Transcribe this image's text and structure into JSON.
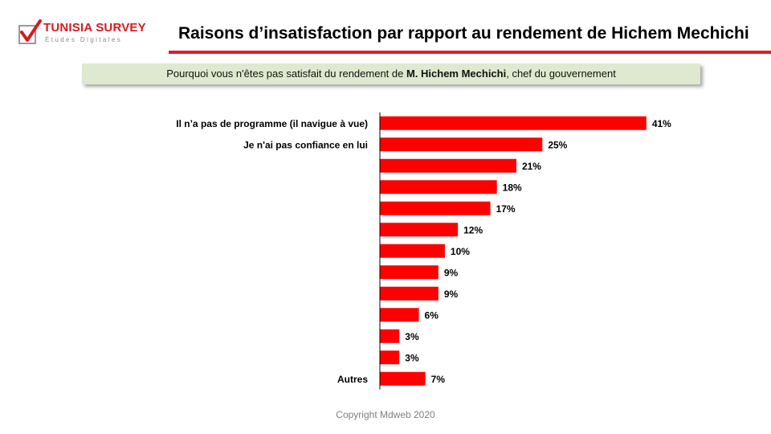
{
  "brand": {
    "name": "TUNISIA SURVEY",
    "tagline": "Études Digitales",
    "color": "#d71920"
  },
  "header": {
    "title": "Raisons d’insatisfaction par rapport au rendement de Hichem Mechichi"
  },
  "question": {
    "prefix": "Pourquoi  vous n'êtes pas satisfait du rendement  de ",
    "name": "M. Hichem Mechichi",
    "suffix": ", chef du gouvernement"
  },
  "footer": {
    "copyright": "Copyright Mdweb 2020"
  },
  "colors": {
    "bar": "#ff0000",
    "accent": "#e31b23",
    "subtitle_bg": "#dfe9cf"
  },
  "chart_data": {
    "type": "bar",
    "orientation": "horizontal",
    "categories": [
      "Il n’a pas de programme (il navigue à vue)",
      "Je n'ai pas confiance en lui",
      "",
      "",
      "",
      "",
      "",
      "",
      "",
      "",
      "",
      "",
      "Autres"
    ],
    "values": [
      41,
      25,
      21,
      18,
      17,
      12,
      10,
      9,
      9,
      6,
      3,
      3,
      7
    ],
    "value_labels": [
      "41%",
      "25%",
      "21%",
      "18%",
      "17%",
      "12%",
      "10%",
      "9%",
      "9%",
      "6%",
      "3%",
      "3%",
      "7%"
    ],
    "unit": "%",
    "xlim": [
      0,
      43
    ],
    "grid": false,
    "legend": "none"
  }
}
